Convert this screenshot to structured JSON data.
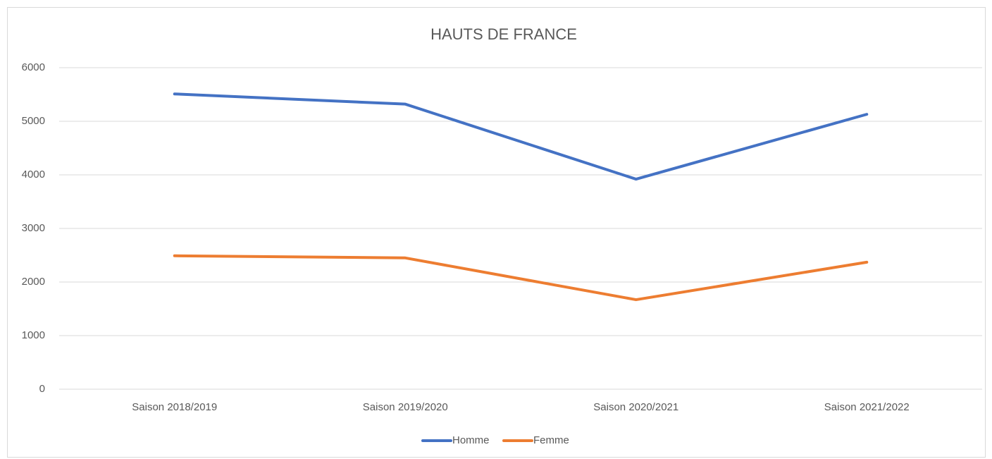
{
  "chart_data": {
    "type": "line",
    "title": "HAUTS DE FRANCE",
    "categories": [
      "Saison 2018/2019",
      "Saison 2019/2020",
      "Saison 2020/2021",
      "Saison 2021/2022"
    ],
    "series": [
      {
        "name": "Homme",
        "color": "#4472c4",
        "values": [
          5510,
          5320,
          3920,
          5130
        ]
      },
      {
        "name": "Femme",
        "color": "#ed7d31",
        "values": [
          2490,
          2450,
          1670,
          2370
        ]
      }
    ],
    "ylim": [
      0,
      6000
    ],
    "yticks": [
      0,
      1000,
      2000,
      3000,
      4000,
      5000,
      6000
    ],
    "grid": true,
    "legend": "bottom"
  }
}
